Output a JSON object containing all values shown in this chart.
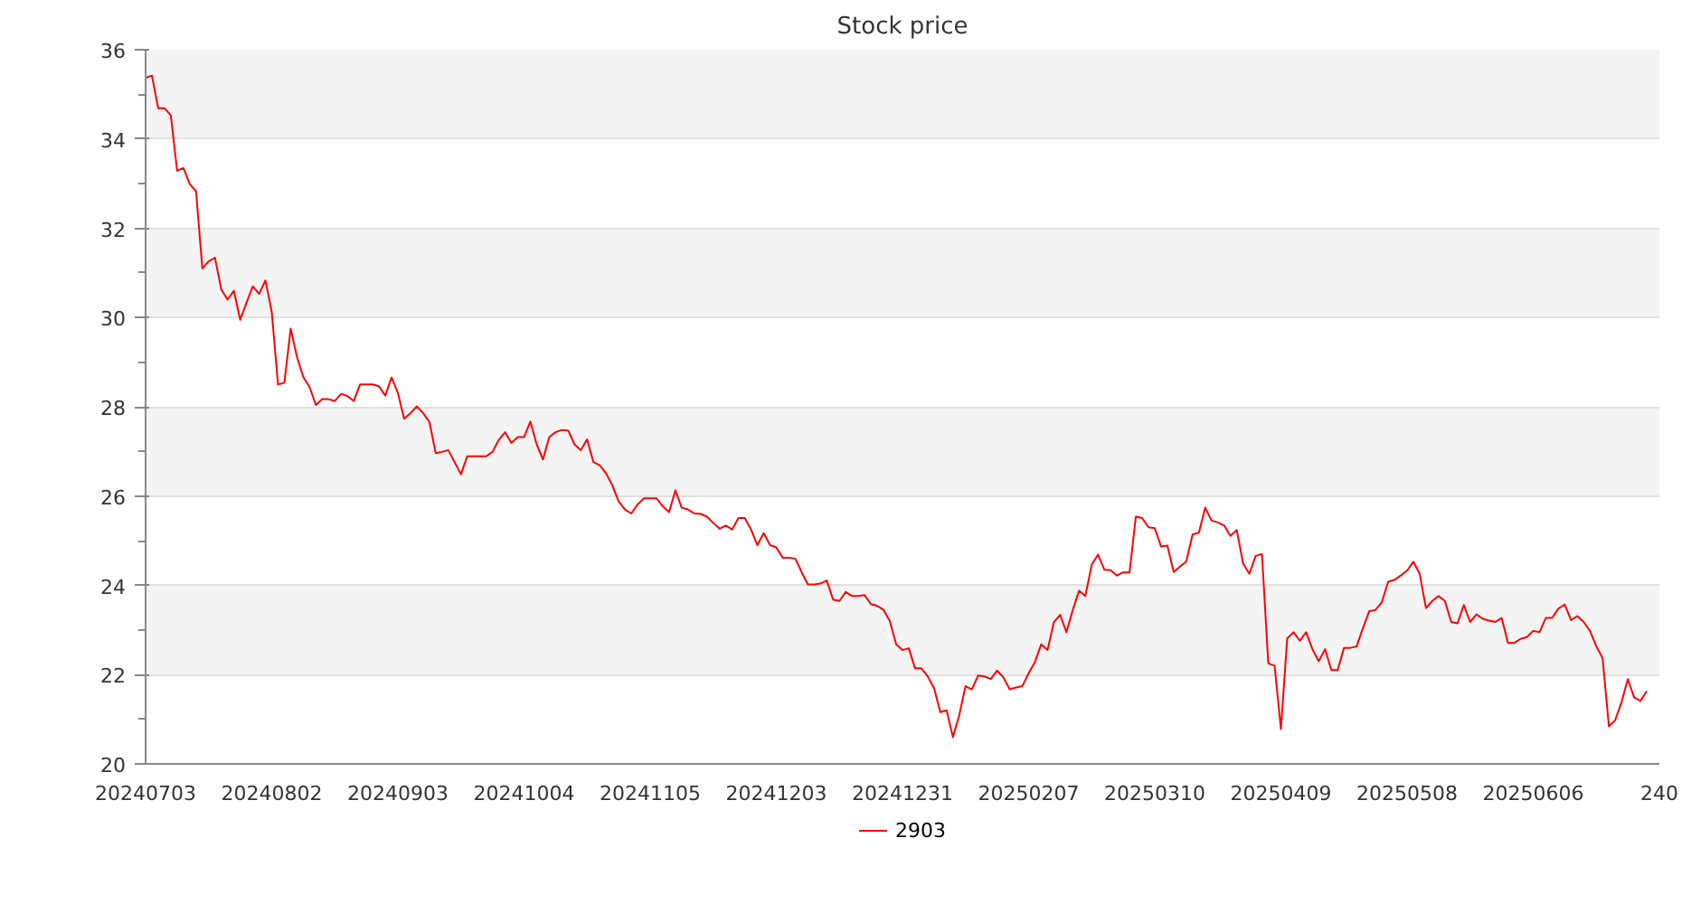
{
  "chart_data": {
    "type": "line",
    "title": "Stock price",
    "categories": [
      "20240703",
      null,
      null,
      null,
      null,
      null,
      null,
      null,
      null,
      null,
      null,
      null,
      null,
      null,
      null,
      null,
      null,
      null,
      null,
      null,
      "20240802",
      null,
      null,
      null,
      null,
      null,
      null,
      null,
      null,
      null,
      null,
      null,
      null,
      null,
      null,
      null,
      null,
      null,
      null,
      null,
      "20240903",
      null,
      null,
      null,
      null,
      null,
      null,
      null,
      null,
      null,
      null,
      null,
      null,
      null,
      null,
      null,
      null,
      null,
      null,
      null,
      "20241004",
      null,
      null,
      null,
      null,
      null,
      null,
      null,
      null,
      null,
      null,
      null,
      null,
      null,
      null,
      null,
      null,
      null,
      null,
      null,
      "20241105",
      null,
      null,
      null,
      null,
      null,
      null,
      null,
      null,
      null,
      null,
      null,
      null,
      null,
      null,
      null,
      null,
      null,
      null,
      null,
      "20241203",
      null,
      null,
      null,
      null,
      null,
      null,
      null,
      null,
      null,
      null,
      null,
      null,
      null,
      null,
      null,
      null,
      null,
      null,
      null,
      "20241231",
      null,
      null,
      null,
      null,
      null,
      null,
      null,
      null,
      null,
      null,
      null,
      null,
      null,
      null,
      null,
      null,
      null,
      null,
      null,
      "20250207",
      null,
      null,
      null,
      null,
      null,
      null,
      null,
      null,
      null,
      null,
      null,
      null,
      null,
      null,
      null,
      null,
      null,
      null,
      null,
      "20250310",
      null,
      null,
      null,
      null,
      null,
      null,
      null,
      null,
      null,
      null,
      null,
      null,
      null,
      null,
      null,
      null,
      null,
      null,
      null,
      "20250409",
      null,
      null,
      null,
      null,
      null,
      null,
      null,
      null,
      null,
      null,
      null,
      null,
      null,
      null,
      null,
      null,
      null,
      null,
      null,
      "20250508",
      null,
      null,
      null,
      null,
      null,
      null,
      null,
      null,
      null,
      null,
      null,
      null,
      null,
      null,
      null,
      null,
      null,
      null,
      null,
      "20250606",
      null,
      null,
      null,
      null,
      null,
      null,
      null,
      null,
      null,
      null,
      null,
      null,
      null,
      null,
      null,
      null,
      null,
      null,
      null,
      "240"
    ],
    "ylim": [
      20,
      36
    ],
    "yticks": [
      20,
      22,
      24,
      26,
      28,
      30,
      32,
      34,
      36
    ],
    "grid": "y",
    "legend": "bottom",
    "series": [
      {
        "name": "2903",
        "color": "#ff0000",
        "values": [
          35.37,
          35.42,
          34.69,
          34.69,
          34.53,
          33.29,
          33.35,
          32.99,
          32.83,
          31.1,
          31.26,
          31.34,
          30.63,
          30.4,
          30.6,
          29.95,
          30.33,
          30.7,
          30.53,
          30.83,
          30.13,
          28.5,
          28.54,
          29.75,
          29.12,
          28.67,
          28.44,
          28.04,
          28.17,
          28.17,
          28.13,
          28.29,
          28.24,
          28.13,
          28.5,
          28.5,
          28.5,
          28.46,
          28.25,
          28.66,
          28.31,
          27.73,
          27.86,
          28.01,
          27.86,
          27.66,
          26.96,
          26.99,
          27.03,
          26.76,
          26.49,
          26.89,
          26.89,
          26.89,
          26.89,
          26.99,
          27.26,
          27.43,
          27.19,
          27.32,
          27.32,
          27.67,
          27.16,
          26.82,
          27.32,
          27.43,
          27.48,
          27.47,
          27.16,
          27.03,
          27.27,
          26.76,
          26.69,
          26.51,
          26.24,
          25.88,
          25.7,
          25.61,
          25.81,
          25.95,
          25.95,
          25.95,
          25.77,
          25.64,
          26.13,
          25.74,
          25.7,
          25.61,
          25.6,
          25.54,
          25.4,
          25.27,
          25.34,
          25.25,
          25.51,
          25.51,
          25.25,
          24.9,
          25.17,
          24.9,
          24.85,
          24.62,
          24.62,
          24.6,
          24.3,
          24.02,
          24.02,
          24.04,
          24.11,
          23.68,
          23.65,
          23.85,
          23.76,
          23.76,
          23.78,
          23.58,
          23.54,
          23.45,
          23.2,
          22.68,
          22.55,
          22.59,
          22.14,
          22.14,
          21.96,
          21.7,
          21.16,
          21.2,
          20.6,
          21.09,
          21.74,
          21.67,
          21.98,
          21.96,
          21.9,
          22.09,
          21.94,
          21.67,
          21.71,
          21.74,
          22.03,
          22.28,
          22.68,
          22.55,
          23.17,
          23.34,
          22.95,
          23.45,
          23.88,
          23.76,
          24.46,
          24.69,
          24.35,
          24.34,
          24.22,
          24.29,
          24.29,
          25.54,
          25.51,
          25.3,
          25.28,
          24.87,
          24.89,
          24.3,
          24.42,
          24.53,
          25.14,
          25.18,
          25.74,
          25.45,
          25.41,
          25.34,
          25.11,
          25.24,
          24.49,
          24.26,
          24.66,
          24.7,
          22.25,
          22.2,
          20.78,
          22.81,
          22.95,
          22.76,
          22.95,
          22.57,
          22.3,
          22.57,
          22.1,
          22.1,
          22.6,
          22.6,
          22.63,
          23.04,
          23.42,
          23.45,
          23.62,
          24.08,
          24.12,
          24.22,
          24.33,
          24.53,
          24.26,
          23.49,
          23.65,
          23.76,
          23.65,
          23.18,
          23.15,
          23.56,
          23.18,
          23.35,
          23.25,
          23.21,
          23.18,
          23.27,
          22.71,
          22.71,
          22.8,
          22.84,
          22.98,
          22.95,
          23.27,
          23.27,
          23.48,
          23.57,
          23.22,
          23.31,
          23.18,
          22.98,
          22.64,
          22.37,
          20.84,
          20.98,
          21.38,
          21.9,
          21.49,
          21.41,
          21.63,
          null,
          null
        ]
      }
    ]
  }
}
